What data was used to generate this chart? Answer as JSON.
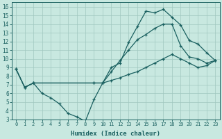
{
  "xlabel": "Humidex (Indice chaleur)",
  "xlim": [
    -0.5,
    23.5
  ],
  "ylim": [
    3,
    16.5
  ],
  "yticks": [
    3,
    4,
    5,
    6,
    7,
    8,
    9,
    10,
    11,
    12,
    13,
    14,
    15,
    16
  ],
  "xticks": [
    0,
    1,
    2,
    3,
    4,
    5,
    6,
    7,
    8,
    9,
    10,
    11,
    12,
    13,
    14,
    15,
    16,
    17,
    18,
    19,
    20,
    21,
    22,
    23
  ],
  "bg_color": "#c8e8e0",
  "grid_color": "#a0c8c0",
  "line_color": "#1a6060",
  "line1_x": [
    0,
    1,
    2,
    3,
    4,
    5,
    6,
    7,
    8,
    9,
    10,
    11,
    12,
    13,
    14,
    15,
    16,
    17,
    18,
    19,
    20,
    21,
    22,
    23
  ],
  "line1_y": [
    8.8,
    6.7,
    7.2,
    6.0,
    5.5,
    4.8,
    3.7,
    3.3,
    2.8,
    5.3,
    7.2,
    9.0,
    9.5,
    11.9,
    13.7,
    15.5,
    15.3,
    15.7,
    14.8,
    13.9,
    12.1,
    11.7,
    10.7,
    9.8
  ],
  "line2_x": [
    0,
    1,
    2,
    9,
    10,
    11,
    12,
    13,
    14,
    15,
    16,
    17,
    18,
    19,
    20,
    21,
    22,
    23
  ],
  "line2_y": [
    8.8,
    6.7,
    7.2,
    7.2,
    7.2,
    8.5,
    9.8,
    11.0,
    12.2,
    12.8,
    13.5,
    14.0,
    14.0,
    11.5,
    10.2,
    10.0,
    9.5,
    9.8
  ],
  "line3_x": [
    0,
    1,
    2,
    9,
    10,
    11,
    12,
    13,
    14,
    15,
    16,
    17,
    18,
    19,
    20,
    21,
    22,
    23
  ],
  "line3_y": [
    8.8,
    6.7,
    7.2,
    7.2,
    7.2,
    7.5,
    7.8,
    8.2,
    8.5,
    9.0,
    9.5,
    10.0,
    10.5,
    10.0,
    9.5,
    9.0,
    9.2,
    9.8
  ]
}
